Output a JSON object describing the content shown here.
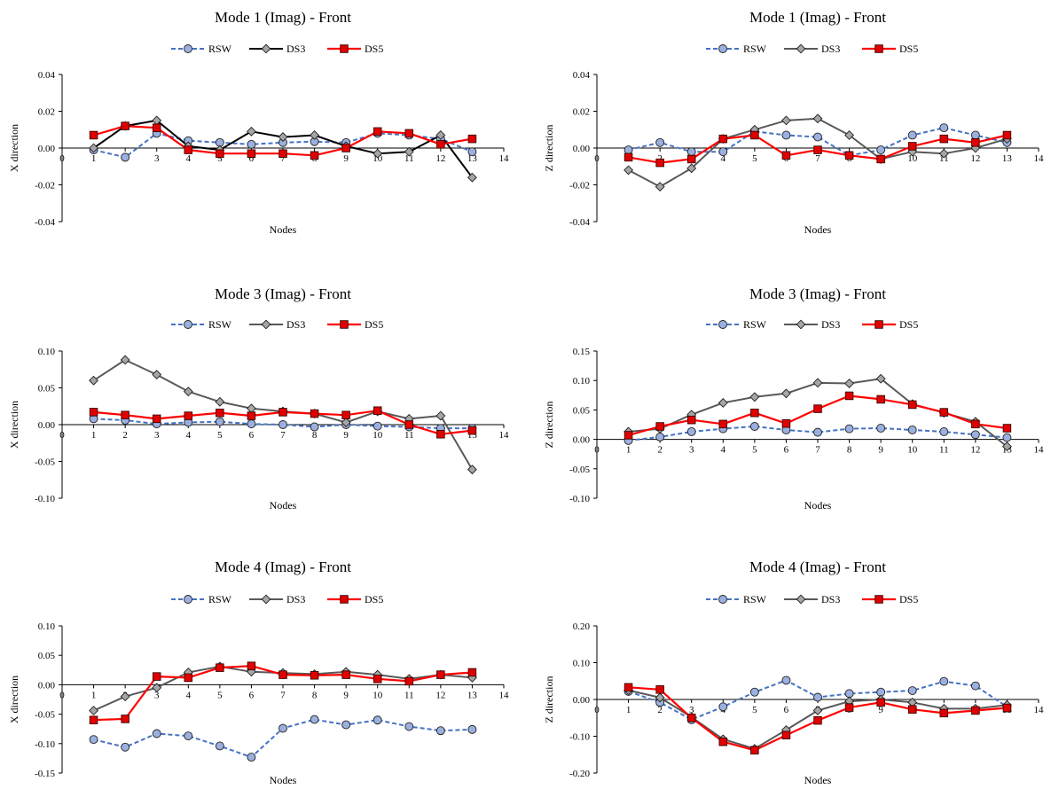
{
  "series_names": [
    "RSW",
    "DS3",
    "DS5"
  ],
  "colors": {
    "RSW": "#4472c4",
    "RSW_fill": "#9bb0de",
    "DS3_line": "#595959",
    "DS3_fill": "#a6a6a6",
    "DS5": "#ff0000",
    "DS5_fill": "#e00000"
  },
  "chart_data": [
    {
      "type": "line",
      "title": "Mode 1 (Imag) - Front",
      "xlabel": "Nodes",
      "ylabel": "X direction",
      "xlim": [
        0,
        14
      ],
      "xticks": [
        0,
        1,
        2,
        3,
        4,
        5,
        6,
        7,
        8,
        9,
        10,
        11,
        12,
        13,
        14
      ],
      "ylim": [
        -0.04,
        0.04
      ],
      "yticks": [
        -0.04,
        -0.02,
        0.0,
        0.02,
        0.04
      ],
      "ytick_labels": [
        "-0.04",
        "-0.02",
        "0.00",
        "0.02",
        "0.04"
      ],
      "legend": "top-center",
      "grid": false,
      "ds3_line": "#000000",
      "x": [
        1,
        2,
        3,
        4,
        5,
        6,
        7,
        8,
        9,
        10,
        11,
        12,
        13
      ],
      "series": [
        {
          "name": "RSW",
          "values": [
            -0.001,
            -0.005,
            0.008,
            0.004,
            0.003,
            0.002,
            0.003,
            0.0035,
            0.003,
            0.008,
            0.007,
            0.005,
            -0.002
          ]
        },
        {
          "name": "DS3",
          "values": [
            0.0,
            0.012,
            0.015,
            0.001,
            -0.001,
            0.009,
            0.006,
            0.007,
            0.001,
            -0.003,
            -0.002,
            0.007,
            -0.016
          ]
        },
        {
          "name": "DS5",
          "values": [
            0.007,
            0.012,
            0.011,
            -0.001,
            -0.003,
            -0.003,
            -0.003,
            -0.004,
            0.0,
            0.009,
            0.008,
            0.002,
            0.005
          ]
        }
      ]
    },
    {
      "type": "line",
      "title": "Mode 1 (Imag) - Front",
      "xlabel": "Nodes",
      "ylabel": "Z direction",
      "xlim": [
        0,
        14
      ],
      "xticks": [
        0,
        1,
        2,
        3,
        4,
        5,
        6,
        7,
        8,
        9,
        10,
        11,
        12,
        13,
        14
      ],
      "ylim": [
        -0.04,
        0.04
      ],
      "yticks": [
        -0.04,
        -0.02,
        0.0,
        0.02,
        0.04
      ],
      "ytick_labels": [
        "-0.04",
        "-0.02",
        "0.00",
        "0.02",
        "0.04"
      ],
      "legend": "top-center",
      "grid": false,
      "ds3_line": "#595959",
      "x": [
        1,
        2,
        3,
        4,
        5,
        6,
        7,
        8,
        9,
        10,
        11,
        12,
        13
      ],
      "series": [
        {
          "name": "RSW",
          "values": [
            -0.001,
            0.003,
            -0.002,
            -0.002,
            0.009,
            0.007,
            0.006,
            -0.004,
            -0.001,
            0.007,
            0.011,
            0.007,
            0.003
          ]
        },
        {
          "name": "DS3",
          "values": [
            -0.012,
            -0.021,
            -0.011,
            0.005,
            0.01,
            0.015,
            0.016,
            0.007,
            -0.006,
            -0.002,
            -0.003,
            0.0,
            0.005
          ]
        },
        {
          "name": "DS5",
          "values": [
            -0.005,
            -0.008,
            -0.006,
            0.005,
            0.007,
            -0.004,
            -0.001,
            -0.004,
            -0.006,
            0.001,
            0.005,
            0.003,
            0.007
          ]
        }
      ]
    },
    {
      "type": "line",
      "title": "Mode 3 (Imag) - Front",
      "xlabel": "Nodes",
      "ylabel": "X direction",
      "xlim": [
        0,
        14
      ],
      "xticks": [
        0,
        1,
        2,
        3,
        4,
        5,
        6,
        7,
        8,
        9,
        10,
        11,
        12,
        13,
        14
      ],
      "ylim": [
        -0.1,
        0.1
      ],
      "yticks": [
        -0.1,
        -0.05,
        0.0,
        0.05,
        0.1
      ],
      "ytick_labels": [
        "-0.10",
        "-0.05",
        "0.00",
        "0.05",
        "0.10"
      ],
      "legend": "top-center",
      "grid": false,
      "ds3_line": "#595959",
      "x": [
        1,
        2,
        3,
        4,
        5,
        6,
        7,
        8,
        9,
        10,
        11,
        12,
        13
      ],
      "series": [
        {
          "name": "RSW",
          "values": [
            0.008,
            0.006,
            0.001,
            0.003,
            0.004,
            0.001,
            0.0,
            -0.003,
            0.0,
            -0.002,
            -0.003,
            -0.005,
            -0.005
          ]
        },
        {
          "name": "DS3",
          "values": [
            0.06,
            0.088,
            0.068,
            0.045,
            0.031,
            0.022,
            0.018,
            0.015,
            0.003,
            0.018,
            0.008,
            0.012,
            -0.061
          ]
        },
        {
          "name": "DS5",
          "values": [
            0.017,
            0.013,
            0.008,
            0.012,
            0.016,
            0.012,
            0.017,
            0.015,
            0.013,
            0.019,
            0.0,
            -0.013,
            -0.008
          ]
        }
      ]
    },
    {
      "type": "line",
      "title": "Mode 3 (Imag) - Front",
      "xlabel": "Nodes",
      "ylabel": "Z direction",
      "xlim": [
        0,
        14
      ],
      "xticks": [
        0,
        1,
        2,
        3,
        4,
        5,
        6,
        7,
        8,
        9,
        10,
        11,
        12,
        13,
        14
      ],
      "ylim": [
        -0.1,
        0.15
      ],
      "yticks": [
        -0.1,
        -0.05,
        0.0,
        0.05,
        0.1,
        0.15
      ],
      "ytick_labels": [
        "-0.10",
        "-0.05",
        "0.00",
        "0.05",
        "0.10",
        "0.15"
      ],
      "legend": "top-center",
      "grid": false,
      "ds3_line": "#595959",
      "x": [
        1,
        2,
        3,
        4,
        5,
        6,
        7,
        8,
        9,
        10,
        11,
        12,
        13
      ],
      "series": [
        {
          "name": "RSW",
          "values": [
            -0.002,
            0.004,
            0.013,
            0.018,
            0.022,
            0.016,
            0.012,
            0.018,
            0.019,
            0.016,
            0.013,
            0.008,
            0.003
          ]
        },
        {
          "name": "DS3",
          "values": [
            0.013,
            0.018,
            0.042,
            0.062,
            0.072,
            0.078,
            0.096,
            0.095,
            0.103,
            0.06,
            0.045,
            0.03,
            -0.012
          ]
        },
        {
          "name": "DS5",
          "values": [
            0.007,
            0.022,
            0.033,
            0.026,
            0.045,
            0.027,
            0.052,
            0.074,
            0.068,
            0.059,
            0.046,
            0.026,
            0.019
          ]
        }
      ]
    },
    {
      "type": "line",
      "title": "Mode 4 (Imag) - Front",
      "xlabel": "Nodes",
      "ylabel": "X direction",
      "xlim": [
        0,
        14
      ],
      "xticks": [
        0,
        1,
        2,
        3,
        4,
        5,
        6,
        7,
        8,
        9,
        10,
        11,
        12,
        13,
        14
      ],
      "ylim": [
        -0.15,
        0.1
      ],
      "yticks": [
        -0.15,
        -0.1,
        -0.05,
        0.0,
        0.05,
        0.1
      ],
      "ytick_labels": [
        "-0.15",
        "-0.10",
        "-0.05",
        "0.00",
        "0.05",
        "0.10"
      ],
      "legend": "top-center",
      "grid": false,
      "ds3_line": "#595959",
      "x": [
        1,
        2,
        3,
        4,
        5,
        6,
        7,
        8,
        9,
        10,
        11,
        12,
        13
      ],
      "series": [
        {
          "name": "RSW",
          "values": [
            -0.093,
            -0.106,
            -0.083,
            -0.087,
            -0.104,
            -0.123,
            -0.074,
            -0.059,
            -0.068,
            -0.06,
            -0.071,
            -0.078,
            -0.076
          ]
        },
        {
          "name": "DS3",
          "values": [
            -0.044,
            -0.02,
            -0.005,
            0.021,
            0.031,
            0.022,
            0.02,
            0.018,
            0.022,
            0.017,
            0.01,
            0.017,
            0.012
          ]
        },
        {
          "name": "DS5",
          "values": [
            -0.06,
            -0.058,
            0.014,
            0.012,
            0.029,
            0.032,
            0.017,
            0.016,
            0.017,
            0.01,
            0.006,
            0.017,
            0.021
          ]
        }
      ]
    },
    {
      "type": "line",
      "title": "Mode 4 (Imag) - Front",
      "xlabel": "Nodes",
      "ylabel": "Z direction",
      "xlim": [
        0,
        14
      ],
      "xticks": [
        0,
        1,
        2,
        3,
        4,
        5,
        6,
        7,
        8,
        9,
        10,
        11,
        12,
        13,
        14
      ],
      "ylim": [
        -0.2,
        0.2
      ],
      "yticks": [
        -0.2,
        -0.1,
        0.0,
        0.1,
        0.2
      ],
      "ytick_labels": [
        "-0.20",
        "-0.10",
        "0.00",
        "0.10",
        "0.20"
      ],
      "legend": "top-center",
      "grid": false,
      "ds3_line": "#595959",
      "x": [
        1,
        2,
        3,
        4,
        5,
        6,
        7,
        8,
        9,
        10,
        11,
        12,
        13
      ],
      "series": [
        {
          "name": "RSW",
          "values": [
            0.022,
            -0.008,
            -0.055,
            -0.02,
            0.02,
            0.052,
            0.006,
            0.016,
            0.02,
            0.024,
            0.049,
            0.037,
            -0.02
          ]
        },
        {
          "name": "DS3",
          "values": [
            0.025,
            0.005,
            -0.048,
            -0.108,
            -0.134,
            -0.083,
            -0.03,
            -0.005,
            0.0,
            -0.008,
            -0.025,
            -0.025,
            -0.015
          ]
        },
        {
          "name": "DS5",
          "values": [
            0.033,
            0.027,
            -0.05,
            -0.115,
            -0.138,
            -0.097,
            -0.057,
            -0.022,
            -0.008,
            -0.027,
            -0.037,
            -0.03,
            -0.023
          ]
        }
      ]
    }
  ]
}
